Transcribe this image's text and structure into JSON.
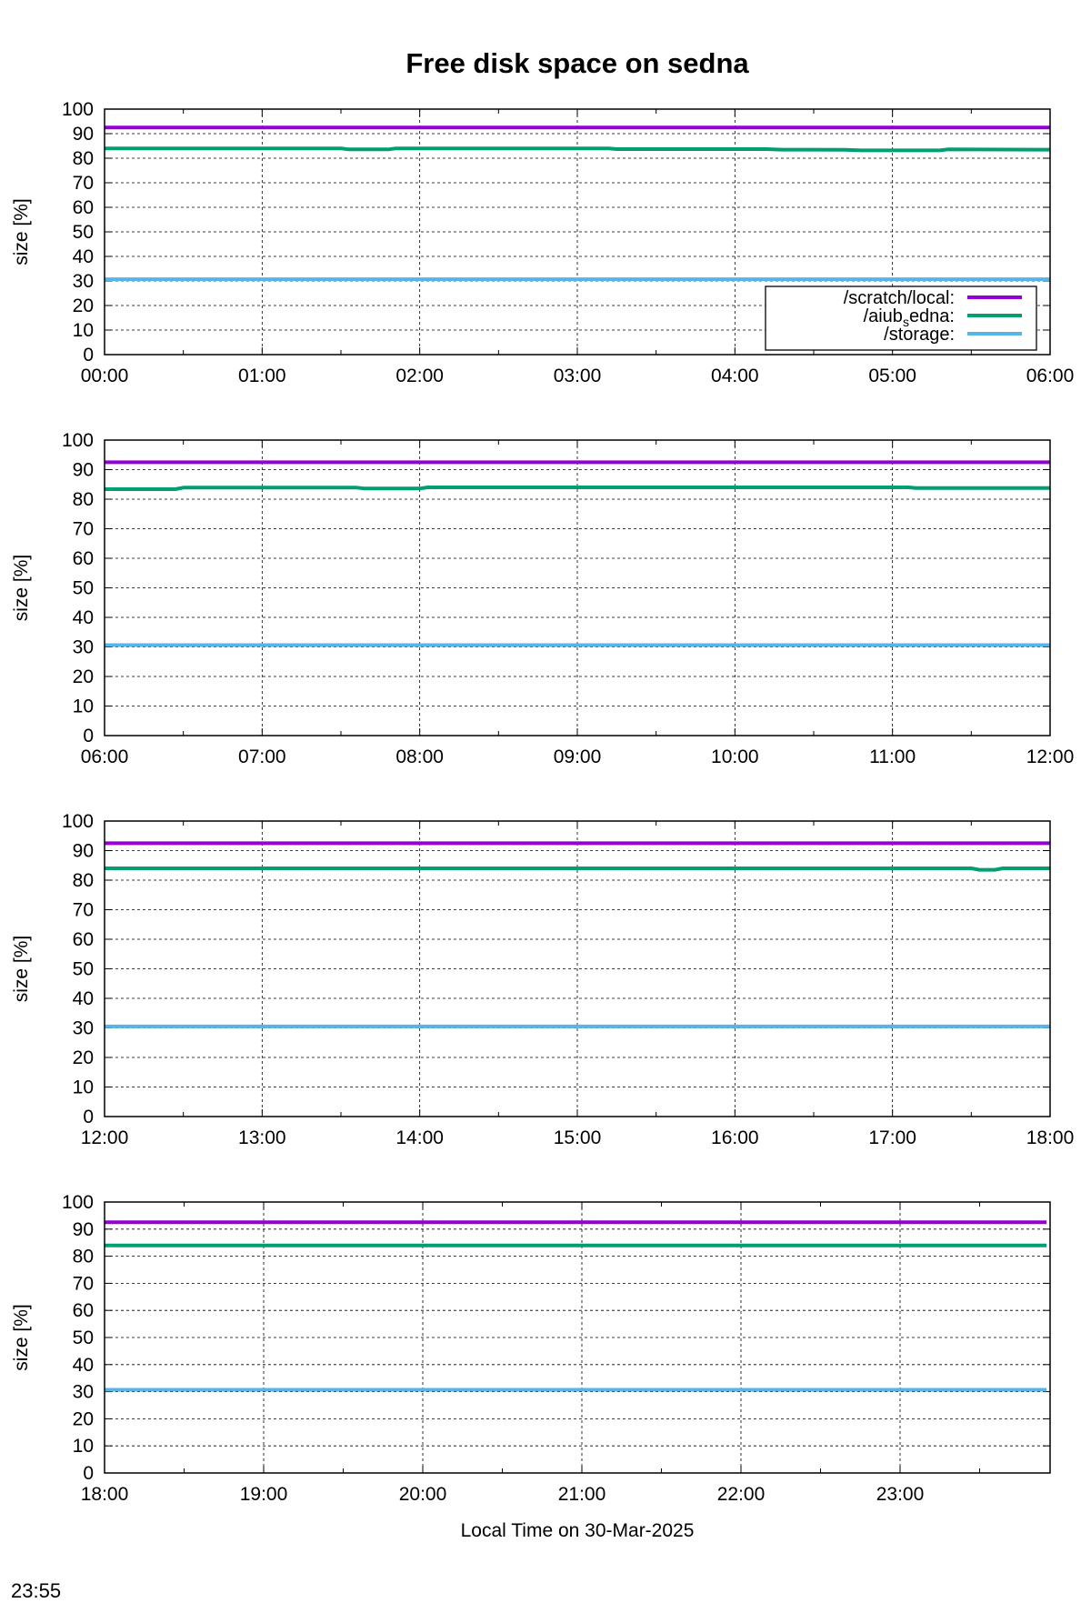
{
  "chart_data": {
    "title": "Free disk space on sedna",
    "xlabel": "Local Time on 30-Mar-2025",
    "ylabel": "size [%]",
    "y_ticks": [
      "0",
      "10",
      "20",
      "30",
      "40",
      "50",
      "60",
      "70",
      "80",
      "90",
      "100"
    ],
    "ylim": [
      0,
      100
    ],
    "type": "line",
    "grid": true,
    "legend_position": "bottom-right (first panel)",
    "legend": [
      {
        "label": "/scratch/local:",
        "color": "#9400d3"
      },
      {
        "label": "/aiub",
        "sub": "s",
        "label_rest": "edna:",
        "color": "#009e73"
      },
      {
        "label": "/storage:",
        "color": "#56b4e9"
      }
    ],
    "panels": [
      {
        "x_ticks": [
          "00:00",
          "01:00",
          "02:00",
          "03:00",
          "04:00",
          "05:00",
          "06:00"
        ],
        "xlim": [
          0,
          6
        ],
        "series": [
          {
            "name": "/scratch/local",
            "color": "#9400d3",
            "x": [
              0,
              6
            ],
            "y": [
              92.5,
              92.5
            ]
          },
          {
            "name": "/aiub_sedna",
            "color": "#009e73",
            "x": [
              0,
              1.5,
              1.55,
              1.8,
              1.85,
              3.2,
              3.25,
              4.2,
              4.3,
              4.7,
              4.8,
              5.3,
              5.35,
              6
            ],
            "y": [
              84,
              84,
              83.6,
              83.6,
              84,
              84,
              83.7,
              83.7,
              83.5,
              83.4,
              83.2,
              83.2,
              83.6,
              83.5
            ]
          },
          {
            "name": "/storage",
            "color": "#56b4e9",
            "x": [
              0,
              6
            ],
            "y": [
              30.7,
              30.7
            ]
          }
        ]
      },
      {
        "x_ticks": [
          "06:00",
          "07:00",
          "08:00",
          "09:00",
          "10:00",
          "11:00",
          "12:00"
        ],
        "xlim": [
          6,
          12
        ],
        "series": [
          {
            "name": "/scratch/local",
            "color": "#9400d3",
            "x": [
              6,
              12
            ],
            "y": [
              92.5,
              92.5
            ]
          },
          {
            "name": "/aiub_sedna",
            "color": "#009e73",
            "x": [
              6,
              6.45,
              6.5,
              7.6,
              7.65,
              8.0,
              8.05,
              11.1,
              11.15,
              12
            ],
            "y": [
              83.4,
              83.4,
              83.9,
              83.9,
              83.6,
              83.6,
              84,
              84,
              83.8,
              83.8
            ]
          },
          {
            "name": "/storage",
            "color": "#56b4e9",
            "x": [
              6,
              12
            ],
            "y": [
              30.6,
              30.6
            ]
          }
        ]
      },
      {
        "x_ticks": [
          "12:00",
          "13:00",
          "14:00",
          "15:00",
          "16:00",
          "17:00",
          "18:00"
        ],
        "xlim": [
          12,
          18
        ],
        "series": [
          {
            "name": "/scratch/local",
            "color": "#9400d3",
            "x": [
              12,
              18
            ],
            "y": [
              92.5,
              92.5
            ]
          },
          {
            "name": "/aiub_sedna",
            "color": "#009e73",
            "x": [
              12,
              17.5,
              17.55,
              17.65,
              17.7,
              18
            ],
            "y": [
              84,
              84,
              83.5,
              83.5,
              84,
              84
            ]
          },
          {
            "name": "/storage",
            "color": "#56b4e9",
            "x": [
              12,
              18
            ],
            "y": [
              30.5,
              30.5
            ]
          }
        ]
      },
      {
        "x_ticks": [
          "18:00",
          "19:00",
          "20:00",
          "21:00",
          "22:00",
          "23:00"
        ],
        "xlim": [
          18,
          23.95
        ],
        "series": [
          {
            "name": "/scratch/local",
            "color": "#9400d3",
            "x": [
              18,
              23.92
            ],
            "y": [
              92.5,
              92.5
            ]
          },
          {
            "name": "/aiub_sedna",
            "color": "#009e73",
            "x": [
              18,
              23.92
            ],
            "y": [
              84,
              84
            ]
          },
          {
            "name": "/storage",
            "color": "#56b4e9",
            "x": [
              18,
              23.92
            ],
            "y": [
              30.7,
              30.7
            ]
          }
        ]
      }
    ]
  },
  "footer": {
    "time": "23:55"
  }
}
